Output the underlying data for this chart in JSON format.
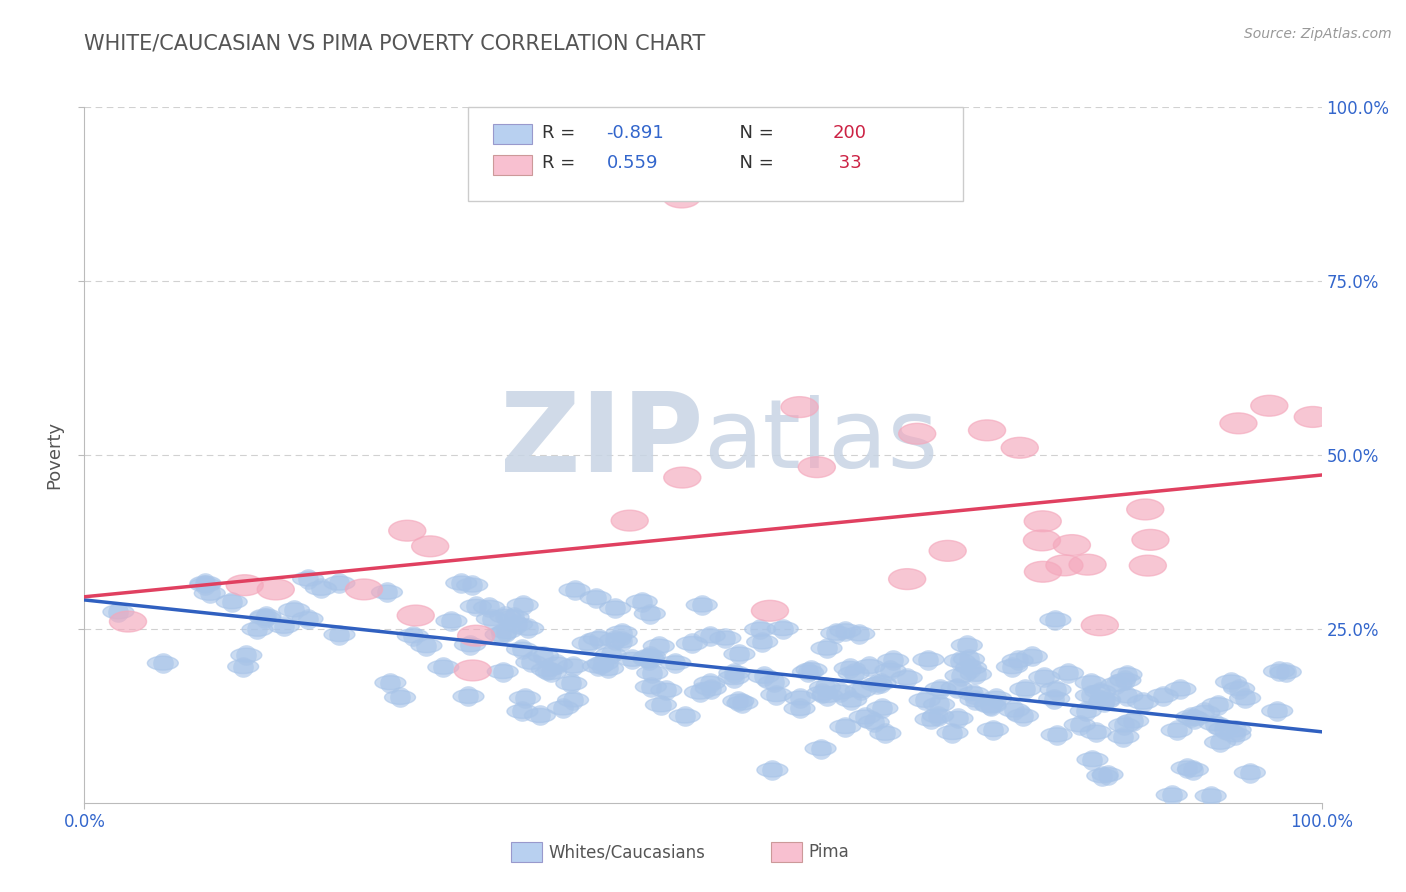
{
  "title": "WHITE/CAUCASIAN VS PIMA POVERTY CORRELATION CHART",
  "source_text": "Source: ZipAtlas.com",
  "ylabel": "Poverty",
  "blue_R": "-0.891",
  "blue_N": "200",
  "pink_R": "0.559",
  "pink_N": "33",
  "blue_scatter_color": "#a8c4e8",
  "pink_scatter_color": "#f4a8bc",
  "blue_line_color": "#3060c0",
  "pink_line_color": "#e04060",
  "blue_legend_color": "#b8d0f0",
  "pink_legend_color": "#f8c0d0",
  "grid_color": "#cccccc",
  "watermark_ZIP_color": "#c8d4e4",
  "watermark_atlas_color": "#c8d4e4",
  "background_color": "#ffffff",
  "title_color": "#555555",
  "source_color": "#999999",
  "label_color": "#555555",
  "legend_black_color": "#333333",
  "legend_blue_color": "#3366cc",
  "legend_red_color": "#cc2244",
  "axis_tick_color": "#3366cc",
  "seed": 7,
  "blue_slope": -0.2,
  "blue_intercept": 0.295,
  "blue_noise": 0.048,
  "pink_slope": 0.26,
  "pink_intercept": 0.195,
  "pink_noise": 0.095
}
